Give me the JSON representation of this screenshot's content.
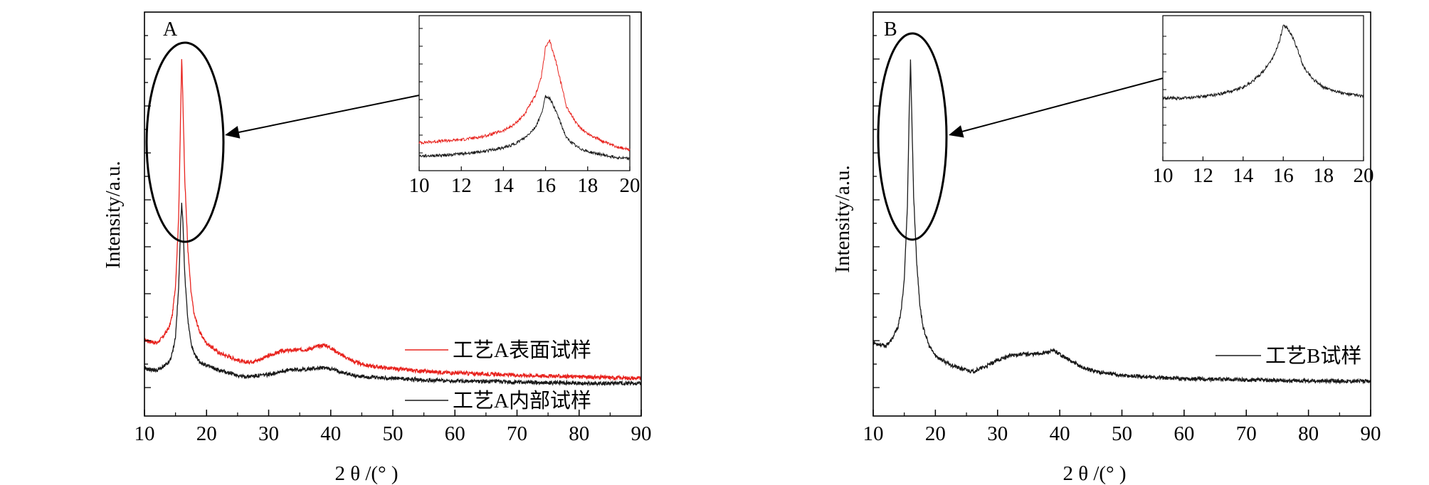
{
  "chart_data": [
    {
      "panel": "A",
      "type": "line",
      "xlabel": "2 θ /(°  )",
      "ylabel": "Intensity/a.u.",
      "xlim": [
        10,
        90
      ],
      "xticks": [
        "10",
        "20",
        "30",
        "40",
        "50",
        "60",
        "70",
        "80",
        "90"
      ],
      "yticks_labeled": false,
      "legend_position": "bottom-right",
      "series": [
        {
          "name": "工艺A表面试样",
          "color": "#e8231e",
          "x": [
            10,
            12,
            13,
            14,
            14.5,
            15,
            15.5,
            15.8,
            16,
            16.2,
            16.5,
            17,
            17.5,
            18,
            19,
            20,
            22,
            24,
            26,
            28,
            30,
            32,
            34,
            36,
            38,
            39,
            40,
            42,
            44,
            46,
            50,
            55,
            60,
            70,
            80,
            90
          ],
          "y": [
            0.12,
            0.11,
            0.13,
            0.16,
            0.2,
            0.29,
            0.5,
            0.8,
            1.0,
            0.86,
            0.62,
            0.4,
            0.27,
            0.2,
            0.14,
            0.11,
            0.08,
            0.065,
            0.05,
            0.055,
            0.07,
            0.085,
            0.088,
            0.09,
            0.1,
            0.105,
            0.095,
            0.07,
            0.05,
            0.04,
            0.03,
            0.022,
            0.017,
            0.01,
            0.005,
            0.0
          ]
        },
        {
          "name": "工艺A内部试样",
          "color": "#1a1a1a",
          "x": [
            10,
            12,
            13,
            14,
            14.5,
            15,
            15.5,
            15.8,
            16,
            16.2,
            16.5,
            17,
            17.5,
            18,
            19,
            20,
            22,
            24,
            26,
            28,
            30,
            32,
            34,
            36,
            38,
            39,
            40,
            42,
            44,
            46,
            50,
            55,
            60,
            70,
            80,
            90
          ],
          "y": [
            0.03,
            0.025,
            0.035,
            0.05,
            0.08,
            0.13,
            0.28,
            0.47,
            0.55,
            0.48,
            0.32,
            0.18,
            0.11,
            0.075,
            0.05,
            0.04,
            0.025,
            0.015,
            0.005,
            0.008,
            0.012,
            0.022,
            0.027,
            0.028,
            0.032,
            0.033,
            0.03,
            0.018,
            0.008,
            0.004,
            0.0,
            -0.005,
            -0.008,
            -0.012,
            -0.015,
            -0.016
          ]
        }
      ],
      "inset": {
        "xlim": [
          10,
          20
        ],
        "xticks": [
          "10",
          "12",
          "14",
          "16",
          "18",
          "20"
        ],
        "series": [
          {
            "name": "工艺A表面试样",
            "color": "#e8231e",
            "x": [
              10,
              11,
              12,
              13,
              14,
              14.5,
              15,
              15.5,
              15.8,
              16,
              16.2,
              16.5,
              16.8,
              17,
              17.5,
              18,
              19,
              20
            ],
            "y": [
              0.14,
              0.15,
              0.16,
              0.18,
              0.22,
              0.26,
              0.33,
              0.45,
              0.58,
              0.78,
              0.82,
              0.68,
              0.5,
              0.38,
              0.26,
              0.2,
              0.13,
              0.09
            ]
          },
          {
            "name": "工艺A内部试样",
            "color": "#1a1a1a",
            "x": [
              10,
              11,
              12,
              13,
              14,
              14.5,
              15,
              15.5,
              15.8,
              16,
              16.2,
              16.5,
              16.8,
              17,
              17.5,
              18,
              19,
              20
            ],
            "y": [
              0.05,
              0.055,
              0.065,
              0.08,
              0.105,
              0.13,
              0.17,
              0.24,
              0.33,
              0.45,
              0.44,
              0.35,
              0.24,
              0.17,
              0.11,
              0.08,
              0.05,
              0.03
            ]
          }
        ]
      }
    },
    {
      "panel": "B",
      "type": "line",
      "xlabel": "2 θ /(°  )",
      "ylabel": "Intensity/a.u.",
      "xlim": [
        10,
        90
      ],
      "xticks": [
        "10",
        "20",
        "30",
        "40",
        "50",
        "60",
        "70",
        "80",
        "90"
      ],
      "yticks_labeled": false,
      "legend_position": "right",
      "series": [
        {
          "name": "工艺B试样",
          "color": "#1a1a1a",
          "x": [
            10,
            12,
            13,
            14,
            14.5,
            15,
            15.5,
            15.8,
            16,
            16.2,
            16.5,
            17,
            17.5,
            18,
            19,
            20,
            22,
            24,
            26,
            28,
            30,
            32,
            34,
            36,
            38,
            39,
            40,
            42,
            44,
            46,
            50,
            55,
            60,
            70,
            80,
            90
          ],
          "y": [
            0.12,
            0.11,
            0.13,
            0.17,
            0.22,
            0.32,
            0.55,
            0.85,
            1.0,
            0.84,
            0.58,
            0.37,
            0.24,
            0.17,
            0.11,
            0.08,
            0.055,
            0.04,
            0.03,
            0.045,
            0.065,
            0.08,
            0.085,
            0.085,
            0.09,
            0.095,
            0.085,
            0.06,
            0.04,
            0.03,
            0.018,
            0.012,
            0.008,
            0.004,
            0.001,
            0.0
          ]
        }
      ],
      "inset": {
        "xlim": [
          10,
          20
        ],
        "xticks": [
          "10",
          "12",
          "14",
          "16",
          "18",
          "20"
        ],
        "series": [
          {
            "name": "工艺B试样",
            "color": "#1a1a1a",
            "x": [
              10,
              11,
              12,
              13,
              14,
              14.5,
              15,
              15.5,
              15.8,
              16,
              16.2,
              16.5,
              16.8,
              17,
              17.5,
              18,
              19,
              20
            ],
            "y": [
              0.4,
              0.4,
              0.41,
              0.43,
              0.47,
              0.51,
              0.57,
              0.66,
              0.76,
              0.86,
              0.85,
              0.78,
              0.68,
              0.6,
              0.52,
              0.47,
              0.43,
              0.41
            ]
          }
        ]
      }
    }
  ]
}
